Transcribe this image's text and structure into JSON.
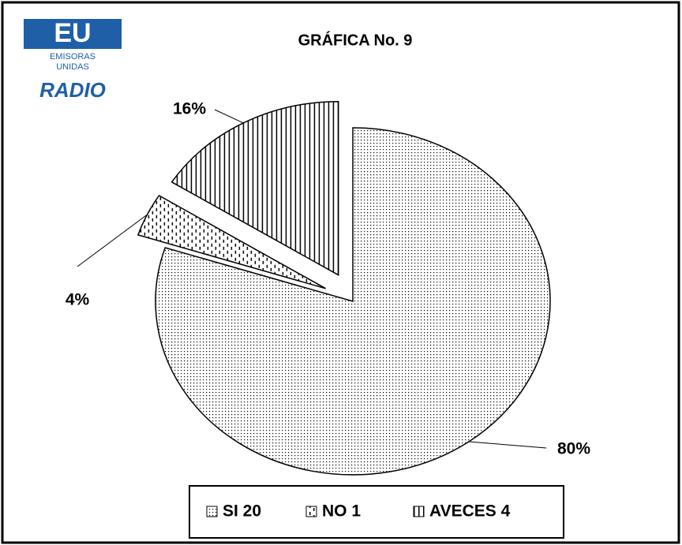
{
  "chart_data": {
    "type": "pie",
    "title": "GRÁFICA No. 9",
    "logo": [
      "EU",
      "EMISORAS",
      "UNIDAS",
      "RADIO"
    ],
    "categories": [
      "SI 20",
      "NO 1",
      "AVECES 4"
    ],
    "values": [
      80,
      4,
      16
    ],
    "value_labels": [
      "80%",
      "4%",
      "16%"
    ],
    "legend": "bottom"
  }
}
